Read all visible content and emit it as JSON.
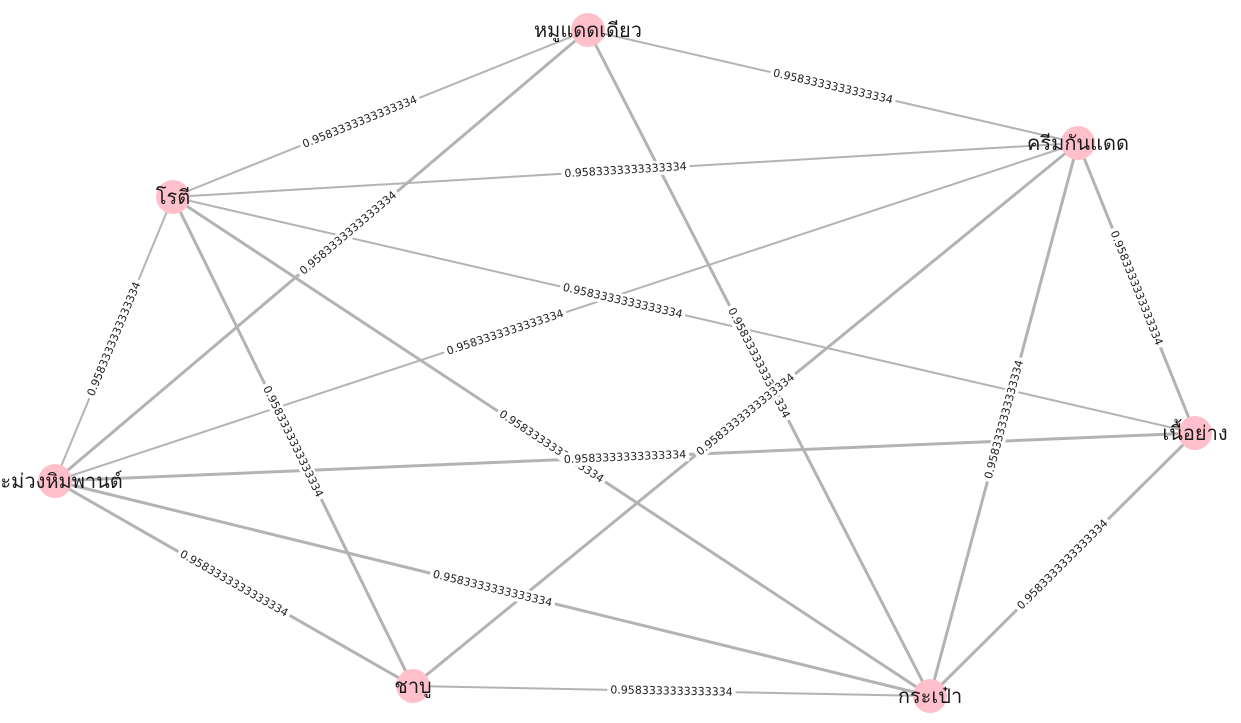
{
  "graph": {
    "node_color": "#ffc0cb",
    "edge_color": "#b3b3b3",
    "nodes": [
      {
        "id": "moo",
        "label": "หมูแดดเดียว"
      },
      {
        "id": "cream",
        "label": "ครีมกันแดด"
      },
      {
        "id": "roti",
        "label": "โรตี"
      },
      {
        "id": "mango",
        "label": "มะม่วงหิมพานต์"
      },
      {
        "id": "beef",
        "label": "เนื้อย่าง"
      },
      {
        "id": "shabu",
        "label": "ชาบู"
      },
      {
        "id": "bag",
        "label": "กระเป๋า"
      }
    ],
    "edges": [
      {
        "source": "moo",
        "target": "roti",
        "weight": "0.9583333333333334"
      },
      {
        "source": "moo",
        "target": "cream",
        "weight": "0.9583333333333334"
      },
      {
        "source": "moo",
        "target": "mango",
        "weight": "0.9583333333333334"
      },
      {
        "source": "moo",
        "target": "bag",
        "weight": "0.9583333333333334"
      },
      {
        "source": "roti",
        "target": "cream",
        "weight": "0.9583333333333334"
      },
      {
        "source": "roti",
        "target": "mango",
        "weight": "0.9583333333333334"
      },
      {
        "source": "roti",
        "target": "shabu",
        "weight": "0.9583333333333334"
      },
      {
        "source": "roti",
        "target": "bag",
        "weight": "0.9583333333333334"
      },
      {
        "source": "roti",
        "target": "beef",
        "weight": "0.9583333333333334"
      },
      {
        "source": "cream",
        "target": "mango",
        "weight": "0.9583333333333334"
      },
      {
        "source": "cream",
        "target": "beef",
        "weight": "0.9583333333333334"
      },
      {
        "source": "cream",
        "target": "shabu",
        "weight": "0.9583333333333334"
      },
      {
        "source": "cream",
        "target": "bag",
        "weight": "0.9583333333333334"
      },
      {
        "source": "mango",
        "target": "beef",
        "weight": "0.9583333333333334"
      },
      {
        "source": "mango",
        "target": "shabu",
        "weight": "0.9583333333333334"
      },
      {
        "source": "mango",
        "target": "bag",
        "weight": "0.9583333333333334"
      },
      {
        "source": "beef",
        "target": "bag",
        "weight": "0.9583333333333334"
      },
      {
        "source": "shabu",
        "target": "bag",
        "weight": "0.9583333333333334"
      }
    ]
  }
}
